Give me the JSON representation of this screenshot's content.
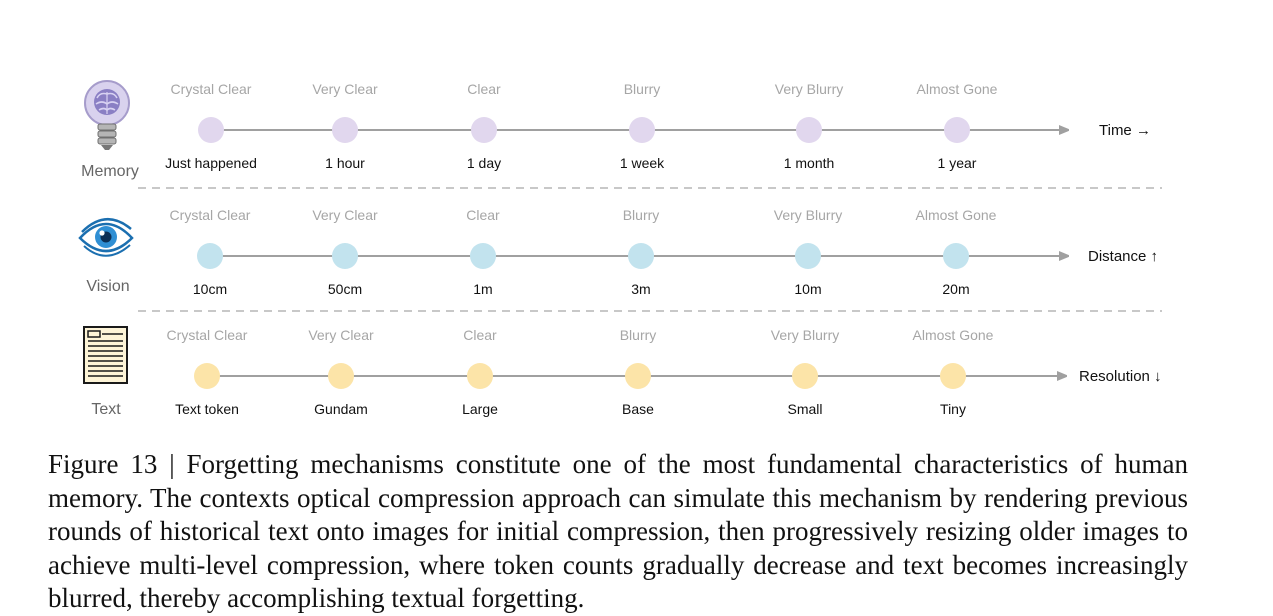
{
  "rows": [
    {
      "name": "Memory",
      "axis": "Time →",
      "icon": "lightbulb-brain-icon",
      "dot_color": "#e1d7ee",
      "stages": [
        {
          "clarity": "Crystal Clear",
          "scale": "Just happened"
        },
        {
          "clarity": "Very Clear",
          "scale": "1 hour"
        },
        {
          "clarity": "Clear",
          "scale": "1 day"
        },
        {
          "clarity": "Blurry",
          "scale": "1 week"
        },
        {
          "clarity": "Very Blurry",
          "scale": "1 month"
        },
        {
          "clarity": "Almost Gone",
          "scale": "1 year"
        }
      ]
    },
    {
      "name": "Vision",
      "axis": "Distance ↑",
      "icon": "eye-icon",
      "dot_color": "#c2e3ee",
      "stages": [
        {
          "clarity": "Crystal Clear",
          "scale": "10cm"
        },
        {
          "clarity": "Very Clear",
          "scale": "50cm"
        },
        {
          "clarity": "Clear",
          "scale": "1m"
        },
        {
          "clarity": "Blurry",
          "scale": "3m"
        },
        {
          "clarity": "Very Blurry",
          "scale": "10m"
        },
        {
          "clarity": "Almost Gone",
          "scale": "20m"
        }
      ]
    },
    {
      "name": "Text",
      "axis": "Resolution ↓",
      "icon": "document-icon",
      "dot_color": "#fce4a8",
      "stages": [
        {
          "clarity": "Crystal Clear",
          "scale": "Text token"
        },
        {
          "clarity": "Very Clear",
          "scale": "Gundam"
        },
        {
          "clarity": "Clear",
          "scale": "Large"
        },
        {
          "clarity": "Blurry",
          "scale": "Base"
        },
        {
          "clarity": "Very Blurry",
          "scale": "Small"
        },
        {
          "clarity": "Almost Gone",
          "scale": "Tiny"
        }
      ]
    }
  ],
  "caption": "Figure 13 | Forgetting mechanisms constitute one of the most fundamental characteristics of human memory. The contexts optical compression approach can simulate this mechanism by rendering previous rounds of historical text onto images for initial compression, then progres­sively resizing older images to achieve multi-level compression, where token counts gradually decrease and text becomes increasingly blurred, thereby accomplishing textual forgetting."
}
